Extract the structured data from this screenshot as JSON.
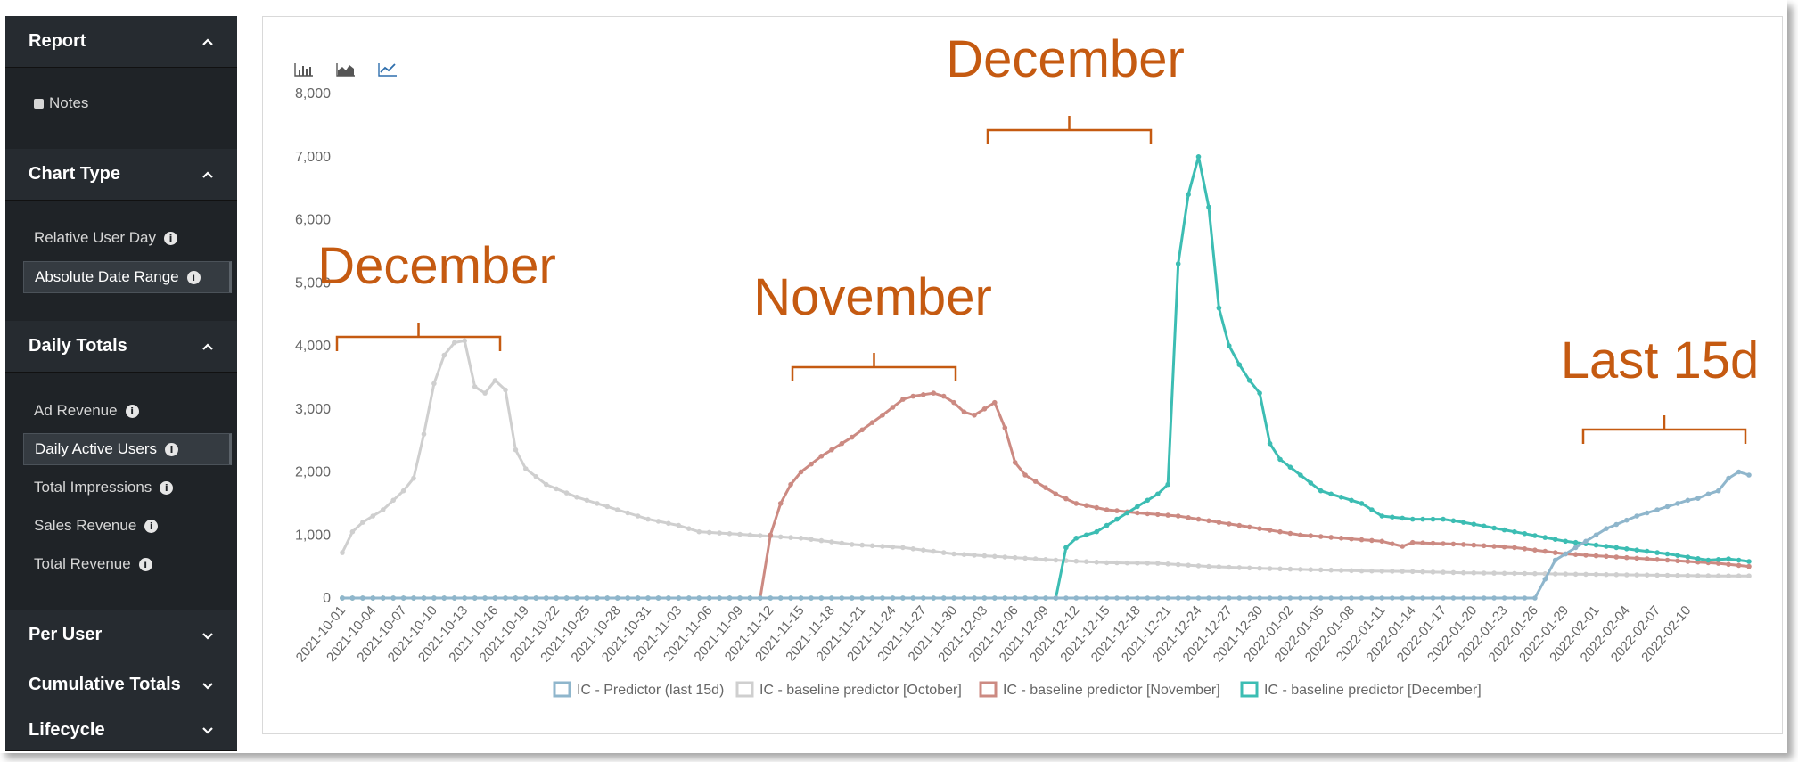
{
  "sidebar": {
    "report": {
      "title": "Report",
      "items": [
        {
          "label": "Notes"
        }
      ]
    },
    "chart_type": {
      "title": "Chart Type",
      "items": [
        {
          "label": "Relative User Day"
        },
        {
          "label": "Absolute Date Range"
        }
      ]
    },
    "daily_totals": {
      "title": "Daily Totals",
      "items": [
        {
          "label": "Ad Revenue"
        },
        {
          "label": "Daily Active Users"
        },
        {
          "label": "Total Impressions"
        },
        {
          "label": "Sales Revenue"
        },
        {
          "label": "Total Revenue"
        }
      ]
    },
    "per_user": {
      "title": "Per User"
    },
    "cumulative_totals": {
      "title": "Cumulative Totals"
    },
    "lifecycle": {
      "title": "Lifecycle"
    }
  },
  "toolbar": {
    "icons": [
      "bar-chart-icon",
      "area-chart-icon",
      "line-chart-icon"
    ]
  },
  "annotations": [
    {
      "text": "December"
    },
    {
      "text": "November"
    },
    {
      "text": "December"
    },
    {
      "text": "Last 15d"
    }
  ],
  "colors": {
    "predictor": "#8fb6cc",
    "october": "#cfcfcf",
    "november": "#cc8a82",
    "december": "#3cbdb3",
    "annotation": "#c55a11"
  },
  "chart_data": {
    "type": "line",
    "y_ticks": [
      "0",
      "1,000",
      "2,000",
      "3,000",
      "4,000",
      "5,000",
      "6,000",
      "7,000",
      "8,000"
    ],
    "ylim": [
      0,
      8000
    ],
    "x_ticks": [
      "2021-10-01",
      "2021-10-04",
      "2021-10-07",
      "2021-10-10",
      "2021-10-13",
      "2021-10-16",
      "2021-10-19",
      "2021-10-22",
      "2021-10-25",
      "2021-10-28",
      "2021-10-31",
      "2021-11-03",
      "2021-11-06",
      "2021-11-09",
      "2021-11-12",
      "2021-11-15",
      "2021-11-18",
      "2021-11-21",
      "2021-11-24",
      "2021-11-27",
      "2021-11-30",
      "2021-12-03",
      "2021-12-06",
      "2021-12-09",
      "2021-12-12",
      "2021-12-15",
      "2021-12-18",
      "2021-12-21",
      "2021-12-24",
      "2021-12-27",
      "2021-12-30",
      "2022-01-02",
      "2022-01-05",
      "2022-01-08",
      "2022-01-11",
      "2022-01-14",
      "2022-01-17",
      "2022-01-20",
      "2022-01-23",
      "2022-01-26",
      "2022-01-29",
      "2022-02-01",
      "2022-02-04",
      "2022-02-07",
      "2022-02-10"
    ],
    "x_start": "2021-10-01",
    "series": [
      {
        "name": "IC - Predictor (last 15d)",
        "color": "#8fb6cc",
        "keypoints": [
          [
            0,
            0
          ],
          [
            117,
            0
          ],
          [
            118,
            300
          ],
          [
            119,
            600
          ],
          [
            121,
            800
          ],
          [
            124,
            1100
          ],
          [
            127,
            1300
          ],
          [
            130,
            1450
          ],
          [
            132,
            1550
          ],
          [
            133,
            1580
          ],
          [
            134,
            1650
          ],
          [
            135,
            1700
          ],
          [
            136,
            1900
          ],
          [
            137,
            2000
          ],
          [
            138,
            1950
          ]
        ]
      },
      {
        "name": "IC - baseline predictor [October]",
        "color": "#cfcfcf",
        "keypoints": [
          [
            0,
            720
          ],
          [
            1,
            1050
          ],
          [
            2,
            1200
          ],
          [
            4,
            1400
          ],
          [
            5,
            1550
          ],
          [
            6,
            1700
          ],
          [
            7,
            1900
          ],
          [
            8,
            2600
          ],
          [
            9,
            3400
          ],
          [
            10,
            3850
          ],
          [
            11,
            4050
          ],
          [
            12,
            4080
          ],
          [
            13,
            3350
          ],
          [
            14,
            3250
          ],
          [
            15,
            3450
          ],
          [
            16,
            3300
          ],
          [
            17,
            2350
          ],
          [
            18,
            2050
          ],
          [
            20,
            1800
          ],
          [
            23,
            1600
          ],
          [
            26,
            1450
          ],
          [
            30,
            1250
          ],
          [
            33,
            1150
          ],
          [
            35,
            1050
          ],
          [
            40,
            1000
          ],
          [
            45,
            950
          ],
          [
            50,
            850
          ],
          [
            55,
            800
          ],
          [
            60,
            700
          ],
          [
            65,
            650
          ],
          [
            70,
            600
          ],
          [
            75,
            560
          ],
          [
            80,
            550
          ],
          [
            85,
            500
          ],
          [
            90,
            470
          ],
          [
            95,
            450
          ],
          [
            100,
            430
          ],
          [
            105,
            420
          ],
          [
            110,
            400
          ],
          [
            115,
            390
          ],
          [
            120,
            380
          ],
          [
            125,
            370
          ],
          [
            130,
            360
          ],
          [
            135,
            350
          ],
          [
            138,
            350
          ]
        ]
      },
      {
        "name": "IC - baseline predictor [November]",
        "color": "#cc8a82",
        "keypoints": [
          [
            0,
            0
          ],
          [
            41,
            0
          ],
          [
            42,
            1000
          ],
          [
            43,
            1500
          ],
          [
            44,
            1800
          ],
          [
            45,
            2000
          ],
          [
            47,
            2250
          ],
          [
            50,
            2550
          ],
          [
            53,
            2900
          ],
          [
            55,
            3150
          ],
          [
            56,
            3200
          ],
          [
            58,
            3250
          ],
          [
            59,
            3200
          ],
          [
            60,
            3100
          ],
          [
            61,
            2950
          ],
          [
            62,
            2900
          ],
          [
            63,
            3000
          ],
          [
            64,
            3100
          ],
          [
            65,
            2700
          ],
          [
            66,
            2150
          ],
          [
            67,
            1950
          ],
          [
            70,
            1650
          ],
          [
            72,
            1500
          ],
          [
            75,
            1400
          ],
          [
            78,
            1350
          ],
          [
            82,
            1300
          ],
          [
            86,
            1200
          ],
          [
            90,
            1100
          ],
          [
            94,
            1000
          ],
          [
            98,
            950
          ],
          [
            102,
            900
          ],
          [
            104,
            820
          ],
          [
            105,
            880
          ],
          [
            110,
            850
          ],
          [
            115,
            800
          ],
          [
            120,
            700
          ],
          [
            125,
            650
          ],
          [
            130,
            600
          ],
          [
            135,
            550
          ],
          [
            138,
            500
          ]
        ]
      },
      {
        "name": "IC - baseline predictor [December]",
        "color": "#3cbdb3",
        "keypoints": [
          [
            0,
            0
          ],
          [
            70,
            0
          ],
          [
            71,
            800
          ],
          [
            72,
            950
          ],
          [
            74,
            1050
          ],
          [
            76,
            1250
          ],
          [
            78,
            1450
          ],
          [
            80,
            1650
          ],
          [
            81,
            1800
          ],
          [
            82,
            5300
          ],
          [
            83,
            6400
          ],
          [
            84,
            7000
          ],
          [
            85,
            6200
          ],
          [
            86,
            4600
          ],
          [
            87,
            4000
          ],
          [
            88,
            3700
          ],
          [
            89,
            3450
          ],
          [
            90,
            3250
          ],
          [
            91,
            2450
          ],
          [
            92,
            2200
          ],
          [
            94,
            1950
          ],
          [
            96,
            1700
          ],
          [
            98,
            1600
          ],
          [
            100,
            1500
          ],
          [
            102,
            1300
          ],
          [
            105,
            1250
          ],
          [
            108,
            1250
          ],
          [
            110,
            1200
          ],
          [
            115,
            1050
          ],
          [
            120,
            900
          ],
          [
            125,
            800
          ],
          [
            130,
            700
          ],
          [
            134,
            600
          ],
          [
            136,
            620
          ],
          [
            138,
            580
          ]
        ]
      }
    ]
  }
}
